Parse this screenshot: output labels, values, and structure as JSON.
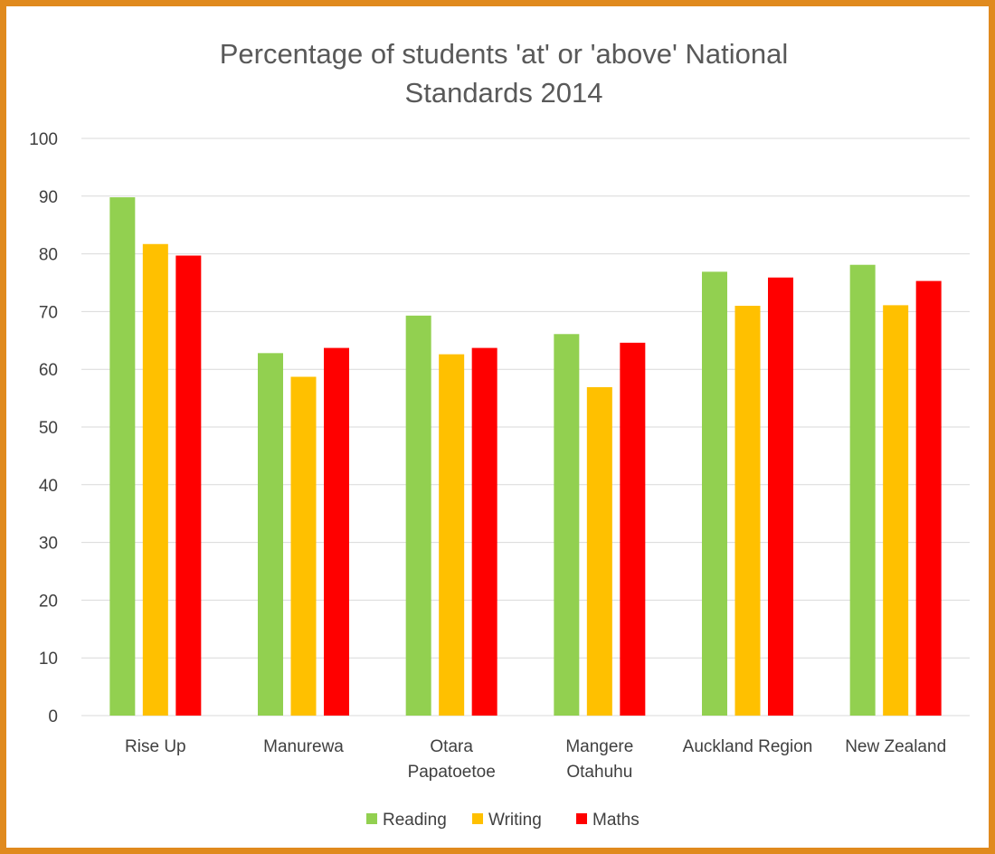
{
  "chart_data": {
    "type": "bar",
    "title_lines": [
      "Percentage of students 'at' or 'above' National",
      "Standards 2014"
    ],
    "categories": [
      [
        "Rise Up"
      ],
      [
        "Manurewa"
      ],
      [
        "Otara",
        "Papatoetoe"
      ],
      [
        "Mangere",
        "Otahuhu"
      ],
      [
        "Auckland Region"
      ],
      [
        "New Zealand"
      ]
    ],
    "series": [
      {
        "name": "Reading",
        "color": "#92d050",
        "values": [
          89.8,
          62.8,
          69.3,
          66.1,
          76.9,
          78.1
        ]
      },
      {
        "name": "Writing",
        "color": "#ffc000",
        "values": [
          81.7,
          58.7,
          62.6,
          56.9,
          71.0,
          71.1
        ]
      },
      {
        "name": "Maths",
        "color": "#ff0000",
        "values": [
          79.7,
          63.7,
          63.7,
          64.6,
          75.9,
          75.3
        ]
      }
    ],
    "ylim": [
      0,
      100
    ],
    "yticks": [
      0,
      10,
      20,
      30,
      40,
      50,
      60,
      70,
      80,
      90,
      100
    ],
    "grid": true,
    "legend": "bottom"
  }
}
